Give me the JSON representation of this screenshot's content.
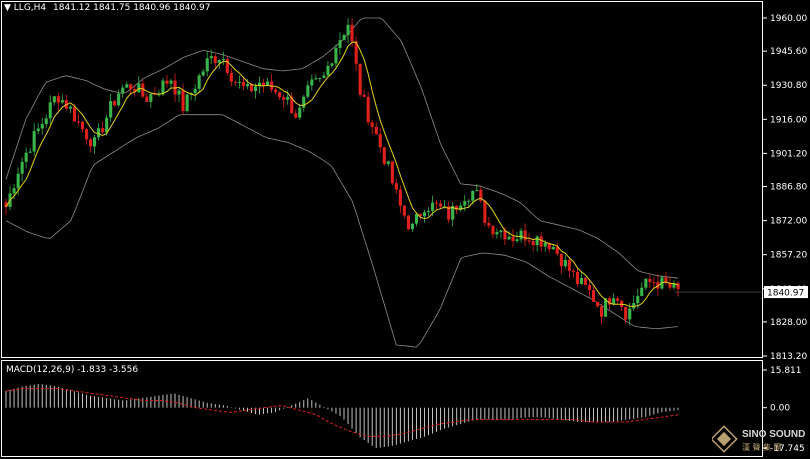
{
  "header": {
    "symbol": "LLG,H4",
    "ohlc": "1841.12 1841.75 1840.96 1840.97"
  },
  "macd_header": {
    "label": "MACD(12,26,9) -1.833 -3.556"
  },
  "watermark": {
    "brand": "SINO SOUND"
  },
  "colors": {
    "background": "#000000",
    "bull": "#39b54a",
    "bear": "#e0201b",
    "ma": "#e0d11a",
    "bands": "#8c8c8c",
    "axis": "#ffffff",
    "macd_hist": "#d8d8d8",
    "macd_signal": "#e0201b"
  },
  "chart_data": [
    {
      "type": "candlestick",
      "symbol": "LLG",
      "timeframe": "H4",
      "overlays": [
        "bollinger bands",
        "moving average"
      ],
      "y_ticks": [
        "1960.00",
        "1945.60",
        "1930.80",
        "1916.00",
        "1901.20",
        "1886.80",
        "1872.00",
        "1857.20",
        "1842.40",
        "1828.00",
        "1813.20"
      ],
      "ylim": [
        1813.2,
        1960.0
      ],
      "last_price": "1840.97",
      "close_path": [
        1878,
        1895,
        1906,
        1916,
        1927,
        1921,
        1912,
        1905,
        1918,
        1929,
        1931,
        1925,
        1929,
        1934,
        1921,
        1932,
        1942,
        1944,
        1933,
        1928,
        1932,
        1929,
        1926,
        1917,
        1930,
        1933,
        1948,
        1958,
        1926,
        1912,
        1897,
        1879,
        1868,
        1879,
        1878,
        1874,
        1883,
        1885,
        1870,
        1868,
        1865,
        1866,
        1864,
        1862,
        1854,
        1846,
        1841,
        1833,
        1842,
        1831,
        1842,
        1846,
        1844,
        1841
      ],
      "upper_band_path": [
        1890,
        1916,
        1932,
        1935,
        1933,
        1929,
        1927,
        1934,
        1938,
        1943,
        1946,
        1944,
        1941,
        1938,
        1937,
        1938,
        1943,
        1950,
        1960,
        1960,
        1950,
        1930,
        1905,
        1888,
        1887,
        1884,
        1880,
        1872,
        1870,
        1868,
        1864,
        1858,
        1850,
        1848,
        1847
      ],
      "lower_band_path": [
        1872,
        1867,
        1864,
        1872,
        1896,
        1902,
        1908,
        1912,
        1918,
        1918,
        1918,
        1913,
        1908,
        1906,
        1902,
        1896,
        1880,
        1850,
        1818,
        1817,
        1833,
        1856,
        1858,
        1857,
        1854,
        1848,
        1843,
        1838,
        1832,
        1826,
        1825,
        1826
      ]
    },
    {
      "type": "bar",
      "name": "MACD(12,26,9)",
      "macd": -1.833,
      "signal": -3.556,
      "y_ticks": [
        "15.811",
        "0.00",
        "-17.745"
      ],
      "ylim": [
        -17.745,
        15.811
      ],
      "histogram_path": [
        7,
        9,
        10,
        9,
        7,
        5,
        4,
        3,
        4,
        5,
        6,
        4,
        2,
        1,
        -1,
        -3,
        -2,
        1,
        4,
        0,
        -4,
        -12,
        -17,
        -16,
        -14,
        -12,
        -9,
        -7,
        -5,
        -5,
        -5,
        -4,
        -4,
        -5,
        -6,
        -6,
        -6,
        -5,
        -4,
        -2,
        -1
      ],
      "signal_path": [
        7,
        8,
        8,
        8,
        7,
        6,
        5,
        4,
        3,
        3,
        2,
        0,
        -1,
        -2,
        -1,
        0,
        1,
        -1,
        -3,
        -7,
        -10,
        -12,
        -12,
        -11,
        -9,
        -7,
        -6,
        -5,
        -5,
        -5,
        -5,
        -5,
        -5,
        -5,
        -6,
        -6,
        -6,
        -5,
        -4,
        -3
      ]
    }
  ]
}
